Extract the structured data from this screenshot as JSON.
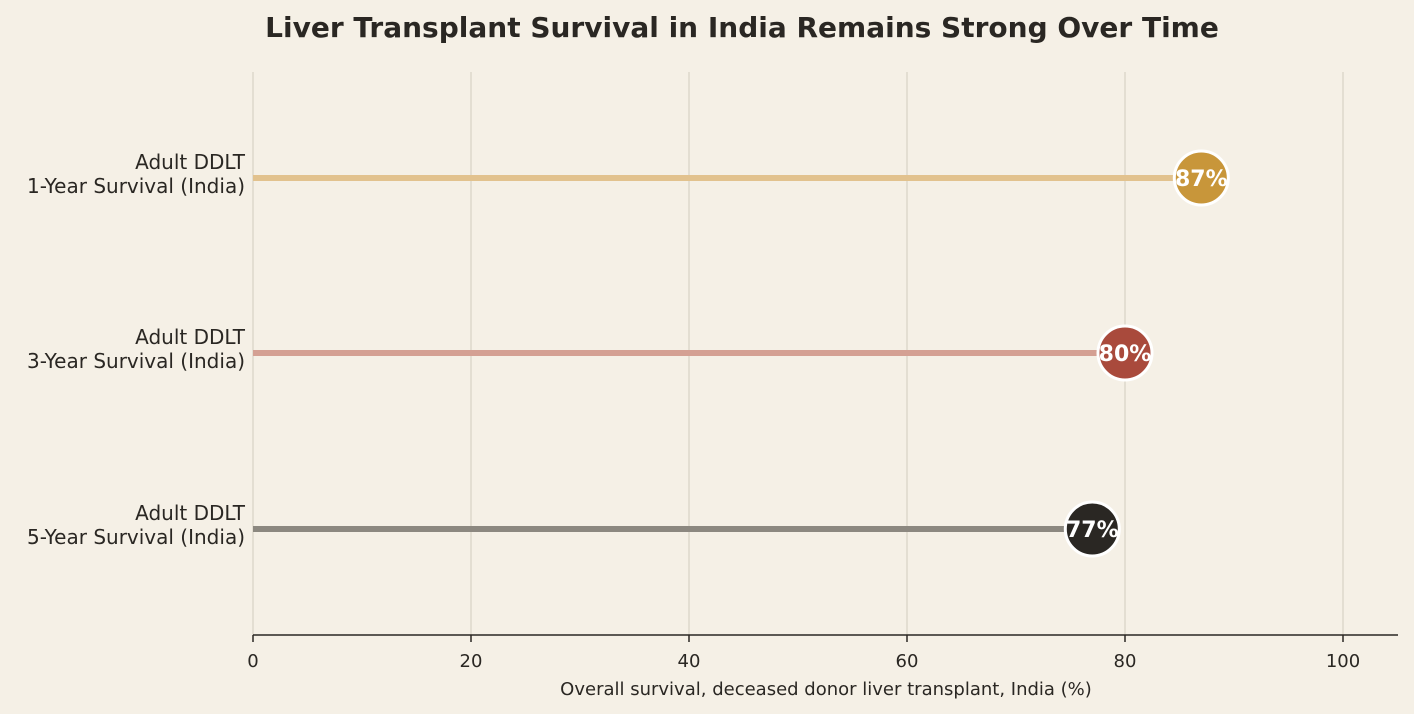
{
  "chart_data": {
    "type": "bar",
    "style": "lollipop",
    "title": "Liver Transplant Survival in India Remains Strong Over Time",
    "xlabel": "Overall survival, deceased donor liver transplant, India (%)",
    "ylabel": "",
    "xlim": [
      0,
      105
    ],
    "xticks": [
      0,
      20,
      40,
      60,
      80,
      100
    ],
    "grid": true,
    "categories": [
      [
        "Adult DDLT",
        "1-Year Survival (India)"
      ],
      [
        "Adult DDLT",
        "3-Year Survival (India)"
      ],
      [
        "Adult DDLT",
        "5-Year Survival (India)"
      ]
    ],
    "values": [
      87,
      80,
      77
    ],
    "data_labels": [
      "87%",
      "80%",
      "77%"
    ],
    "dot_colors": [
      "#c8963a",
      "#a94a3c",
      "#2a2723"
    ],
    "stem_colors": [
      "#e2c28e",
      "#d4a093",
      "#8c8880"
    ]
  }
}
